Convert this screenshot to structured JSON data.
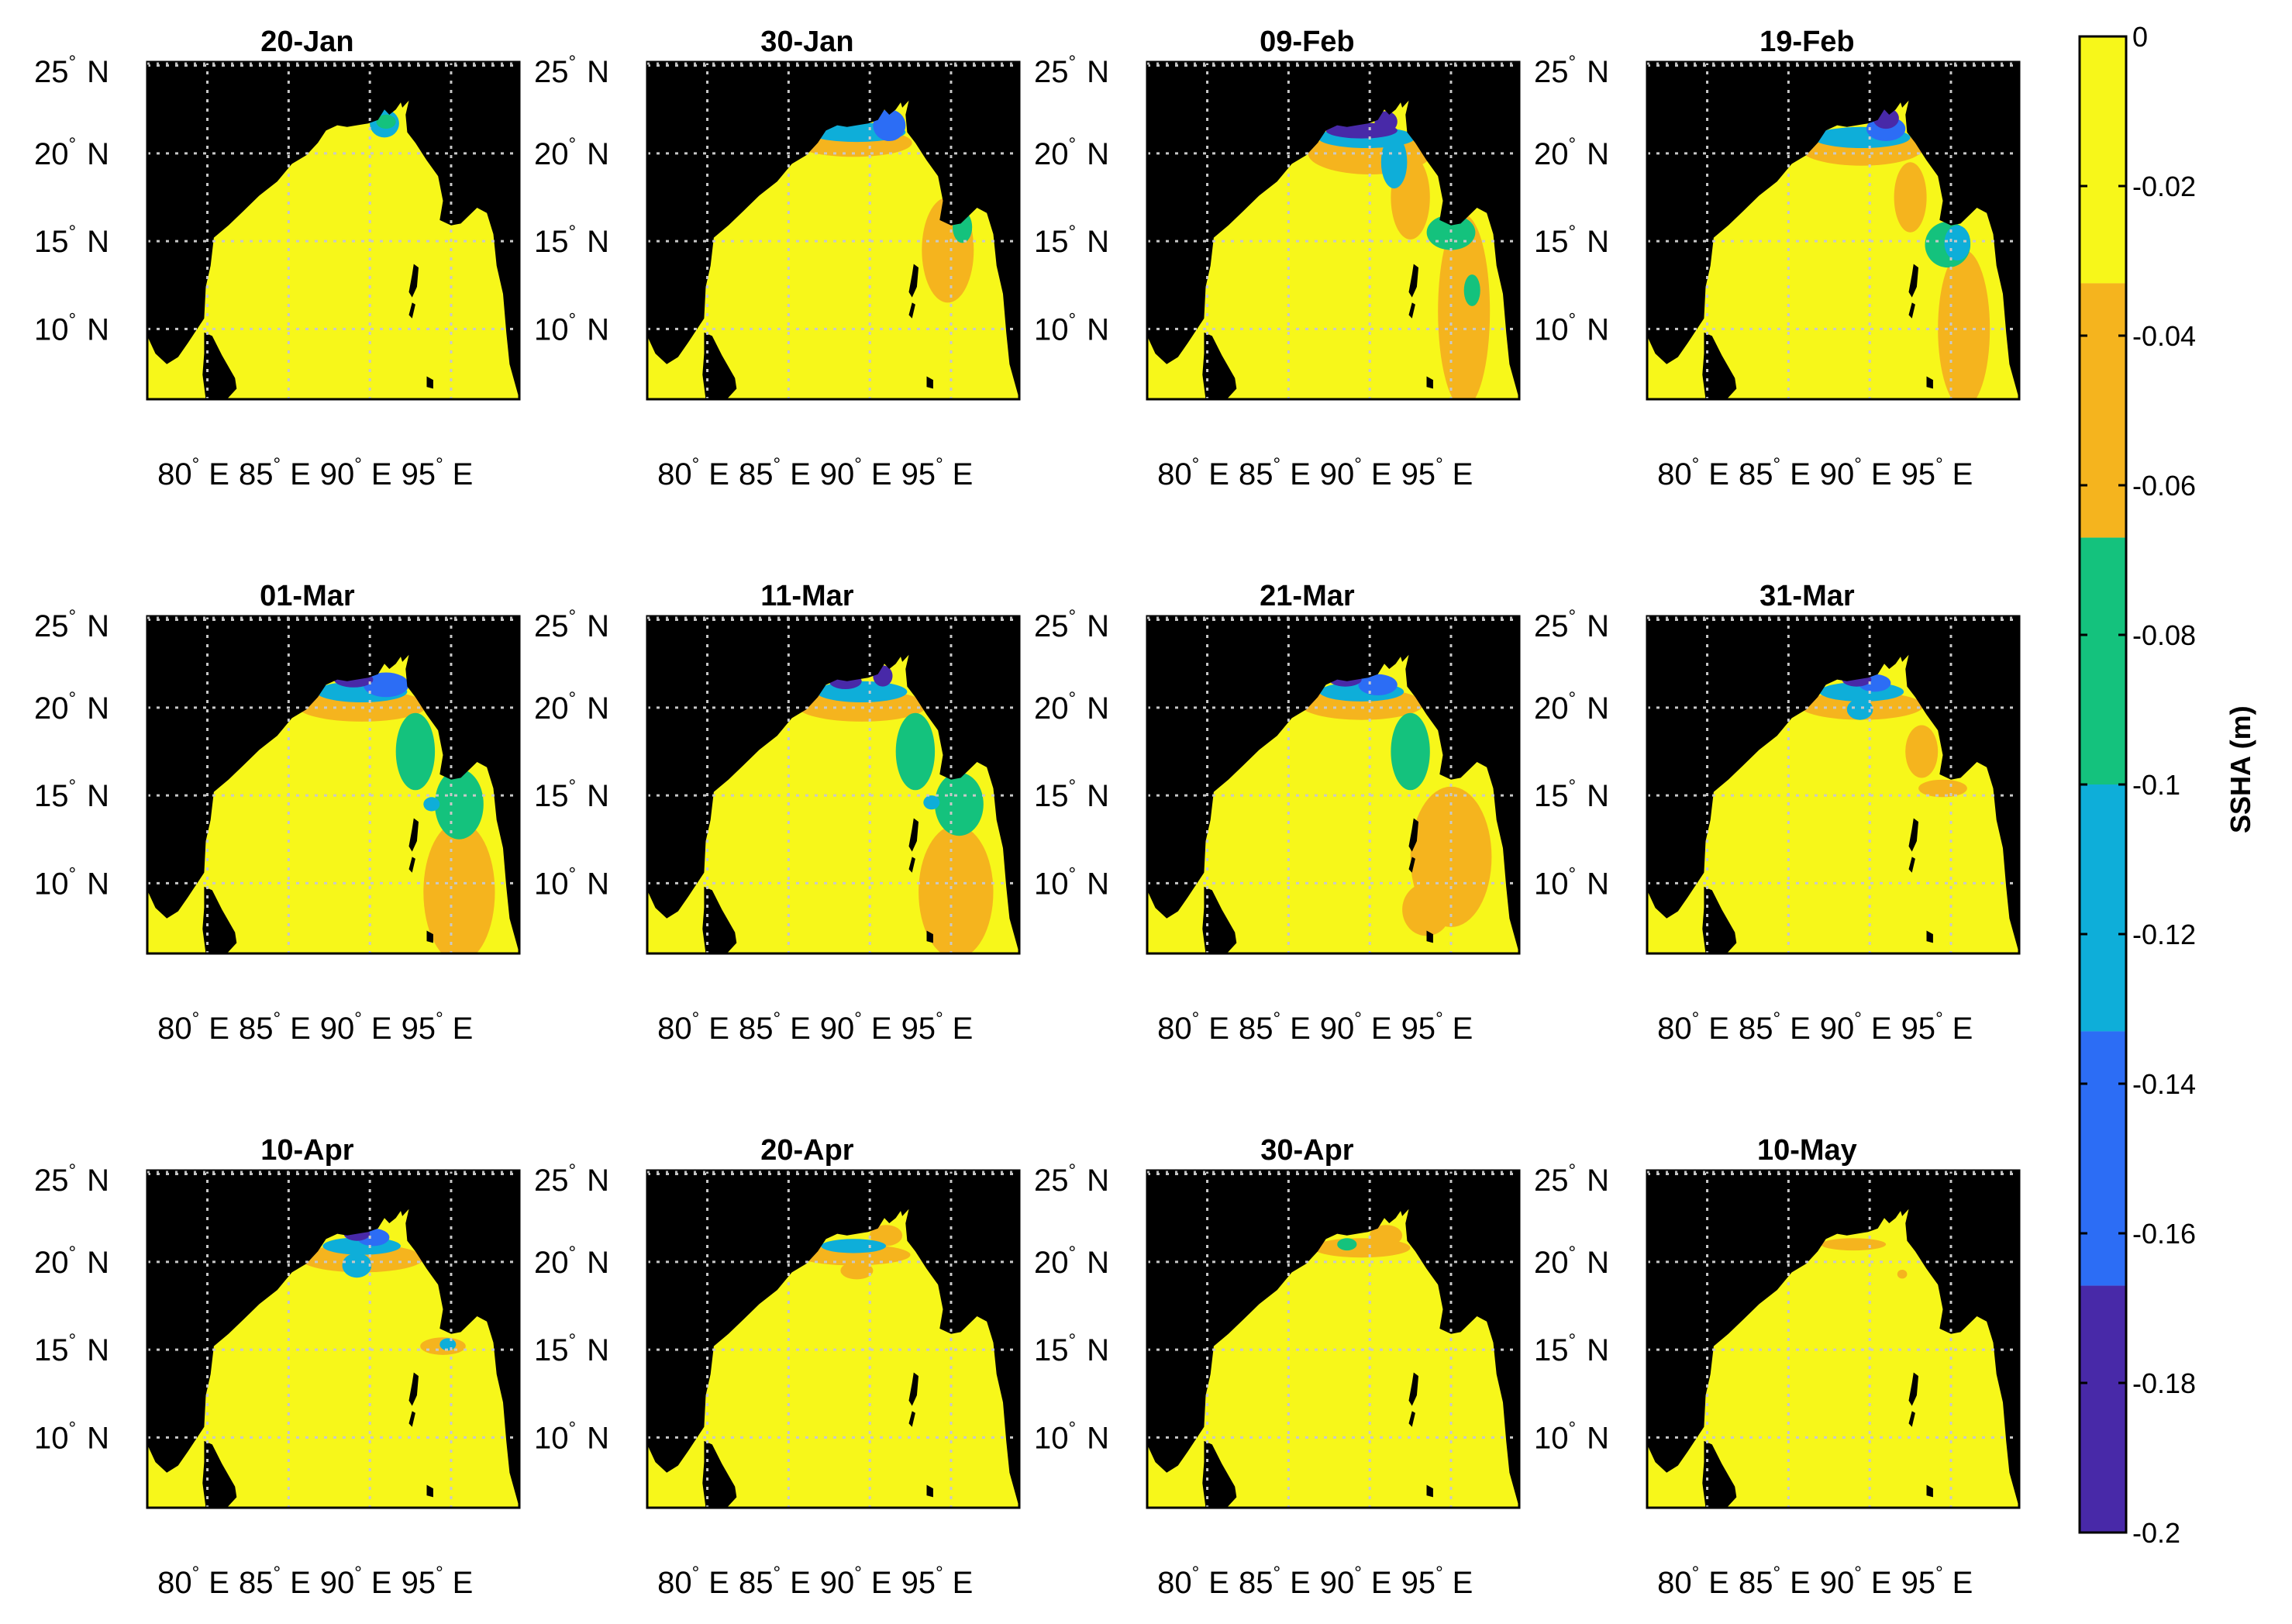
{
  "chart_data": {
    "type": "heatmap",
    "description_units": "SSHA (m)",
    "colorbar": {
      "label": "SSHA (m)",
      "range": [
        -0.2,
        0
      ],
      "ticks": [
        "0",
        "-0.02",
        "-0.04",
        "-0.06",
        "-0.08",
        "-0.1",
        "-0.12",
        "-0.14",
        "-0.16",
        "-0.18",
        "-0.2"
      ],
      "tick_values": [
        0,
        -0.02,
        -0.04,
        -0.06,
        -0.08,
        -0.1,
        -0.12,
        -0.14,
        -0.16,
        -0.18,
        -0.2
      ],
      "bands": [
        {
          "from": 0,
          "to": -0.033,
          "color": "#f7f71a"
        },
        {
          "from": -0.033,
          "to": -0.067,
          "color": "#f5b41e"
        },
        {
          "from": -0.067,
          "to": -0.1,
          "color": "#14c27d"
        },
        {
          "from": -0.1,
          "to": -0.133,
          "color": "#0eaed9"
        },
        {
          "from": -0.133,
          "to": -0.167,
          "color": "#2c6df5"
        },
        {
          "from": -0.167,
          "to": -0.2,
          "color": "#4829a8"
        }
      ]
    },
    "lat_ticks": [
      {
        "value": 25,
        "deg": "25",
        "hemi": "N"
      },
      {
        "value": 20,
        "deg": "20",
        "hemi": "N"
      },
      {
        "value": 15,
        "deg": "15",
        "hemi": "N"
      },
      {
        "value": 10,
        "deg": "10",
        "hemi": "N"
      }
    ],
    "lon_ticks": [
      {
        "value": 80,
        "deg": "80",
        "hemi": "E"
      },
      {
        "value": 85,
        "deg": "85",
        "hemi": "E"
      },
      {
        "value": 90,
        "deg": "90",
        "hemi": "E"
      },
      {
        "value": 95,
        "deg": "95",
        "hemi": "E"
      }
    ],
    "land_color": "#000000",
    "ocean_base_color": "#f7f71a",
    "grid": true,
    "panels": [
      {
        "date": "20-Jan",
        "min_ssha_m": -0.12,
        "anomalies": [
          {
            "lon": 90.9,
            "lat": 21.7,
            "rx": 0.9,
            "ry": 0.8,
            "band": 3
          },
          {
            "lon": 91.0,
            "lat": 21.8,
            "rx": 0.6,
            "ry": 0.4,
            "band": 2
          }
        ]
      },
      {
        "date": "30-Jan",
        "min_ssha_m": -0.14,
        "anomalies": [
          {
            "lon": 89.0,
            "lat": 20.6,
            "rx": 3.6,
            "ry": 0.8,
            "band": 1
          },
          {
            "lon": 89.2,
            "lat": 21.2,
            "rx": 3.0,
            "ry": 0.55,
            "band": 3
          },
          {
            "lon": 91.2,
            "lat": 21.6,
            "rx": 1.0,
            "ry": 0.9,
            "band": 4
          },
          {
            "lon": 94.8,
            "lat": 14.5,
            "rx": 1.6,
            "ry": 3.0,
            "band": 1
          },
          {
            "lon": 95.7,
            "lat": 15.8,
            "rx": 0.6,
            "ry": 0.9,
            "band": 2
          }
        ]
      },
      {
        "date": "09-Feb",
        "min_ssha_m": -0.2,
        "anomalies": [
          {
            "lon": 90.0,
            "lat": 20.0,
            "rx": 3.8,
            "ry": 1.2,
            "band": 1
          },
          {
            "lon": 92.5,
            "lat": 17.5,
            "rx": 1.2,
            "ry": 2.4,
            "band": 1
          },
          {
            "lon": 95.8,
            "lat": 11.0,
            "rx": 1.6,
            "ry": 5.5,
            "band": 1
          },
          {
            "lon": 95.0,
            "lat": 15.5,
            "rx": 1.5,
            "ry": 1.0,
            "band": 2
          },
          {
            "lon": 89.8,
            "lat": 20.9,
            "rx": 3.0,
            "ry": 0.6,
            "band": 3
          },
          {
            "lon": 91.5,
            "lat": 19.5,
            "rx": 0.8,
            "ry": 1.5,
            "band": 3
          },
          {
            "lon": 89.5,
            "lat": 21.3,
            "rx": 2.2,
            "ry": 0.45,
            "band": 5
          },
          {
            "lon": 91.0,
            "lat": 21.8,
            "rx": 0.7,
            "ry": 0.6,
            "band": 5
          },
          {
            "lon": 96.3,
            "lat": 12.2,
            "rx": 0.5,
            "ry": 0.9,
            "band": 2
          }
        ]
      },
      {
        "date": "19-Feb",
        "min_ssha_m": -0.2,
        "anomalies": [
          {
            "lon": 89.5,
            "lat": 20.3,
            "rx": 3.8,
            "ry": 1.0,
            "band": 1
          },
          {
            "lon": 92.5,
            "lat": 17.5,
            "rx": 1.0,
            "ry": 2.0,
            "band": 1
          },
          {
            "lon": 95.8,
            "lat": 10.0,
            "rx": 1.6,
            "ry": 4.5,
            "band": 1
          },
          {
            "lon": 94.8,
            "lat": 14.8,
            "rx": 1.4,
            "ry": 1.3,
            "band": 2
          },
          {
            "lon": 95.4,
            "lat": 14.9,
            "rx": 0.8,
            "ry": 1.0,
            "band": 3
          },
          {
            "lon": 89.5,
            "lat": 20.9,
            "rx": 3.0,
            "ry": 0.6,
            "band": 3
          },
          {
            "lon": 91.0,
            "lat": 21.4,
            "rx": 1.2,
            "ry": 0.7,
            "band": 4
          },
          {
            "lon": 91.0,
            "lat": 22.0,
            "rx": 0.8,
            "ry": 0.6,
            "band": 5
          }
        ]
      },
      {
        "date": "01-Mar",
        "min_ssha_m": -0.2,
        "anomalies": [
          {
            "lon": 89.5,
            "lat": 20.1,
            "rx": 4.0,
            "ry": 0.9,
            "band": 1
          },
          {
            "lon": 92.8,
            "lat": 17.5,
            "rx": 1.2,
            "ry": 2.2,
            "band": 2
          },
          {
            "lon": 95.5,
            "lat": 9.5,
            "rx": 2.2,
            "ry": 4.0,
            "band": 1
          },
          {
            "lon": 95.5,
            "lat": 14.5,
            "rx": 1.5,
            "ry": 2.0,
            "band": 2
          },
          {
            "lon": 93.8,
            "lat": 14.5,
            "rx": 0.5,
            "ry": 0.4,
            "band": 3
          },
          {
            "lon": 89.5,
            "lat": 20.9,
            "rx": 2.8,
            "ry": 0.6,
            "band": 3
          },
          {
            "lon": 91.0,
            "lat": 21.3,
            "rx": 1.4,
            "ry": 0.7,
            "band": 4
          },
          {
            "lon": 89.0,
            "lat": 21.6,
            "rx": 1.2,
            "ry": 0.45,
            "band": 5
          }
        ]
      },
      {
        "date": "11-Mar",
        "min_ssha_m": -0.2,
        "anomalies": [
          {
            "lon": 89.5,
            "lat": 20.1,
            "rx": 4.0,
            "ry": 0.9,
            "band": 1
          },
          {
            "lon": 92.8,
            "lat": 17.5,
            "rx": 1.2,
            "ry": 2.2,
            "band": 2
          },
          {
            "lon": 95.3,
            "lat": 9.5,
            "rx": 2.3,
            "ry": 3.8,
            "band": 1
          },
          {
            "lon": 95.5,
            "lat": 14.5,
            "rx": 1.5,
            "ry": 1.8,
            "band": 2
          },
          {
            "lon": 93.8,
            "lat": 14.6,
            "rx": 0.5,
            "ry": 0.4,
            "band": 3
          },
          {
            "lon": 89.5,
            "lat": 20.9,
            "rx": 2.8,
            "ry": 0.6,
            "band": 3
          },
          {
            "lon": 88.5,
            "lat": 21.5,
            "rx": 1.0,
            "ry": 0.45,
            "band": 5
          },
          {
            "lon": 90.8,
            "lat": 21.8,
            "rx": 0.6,
            "ry": 0.6,
            "band": 5
          }
        ]
      },
      {
        "date": "21-Mar",
        "min_ssha_m": -0.2,
        "anomalies": [
          {
            "lon": 89.5,
            "lat": 20.2,
            "rx": 3.8,
            "ry": 0.9,
            "band": 1
          },
          {
            "lon": 92.5,
            "lat": 17.5,
            "rx": 1.2,
            "ry": 2.2,
            "band": 2
          },
          {
            "lon": 95.0,
            "lat": 11.5,
            "rx": 2.5,
            "ry": 4.0,
            "band": 1
          },
          {
            "lon": 93.5,
            "lat": 8.5,
            "rx": 1.5,
            "ry": 1.5,
            "band": 1
          },
          {
            "lon": 89.5,
            "lat": 20.9,
            "rx": 2.6,
            "ry": 0.55,
            "band": 3
          },
          {
            "lon": 90.5,
            "lat": 21.3,
            "rx": 1.2,
            "ry": 0.6,
            "band": 4
          },
          {
            "lon": 88.5,
            "lat": 21.6,
            "rx": 1.0,
            "ry": 0.4,
            "band": 5
          }
        ]
      },
      {
        "date": "31-Mar",
        "min_ssha_m": -0.2,
        "anomalies": [
          {
            "lon": 89.5,
            "lat": 20.1,
            "rx": 3.8,
            "ry": 0.8,
            "band": 1
          },
          {
            "lon": 89.4,
            "lat": 19.9,
            "rx": 0.8,
            "ry": 0.6,
            "band": 3
          },
          {
            "lon": 93.2,
            "lat": 17.5,
            "rx": 1.0,
            "ry": 1.5,
            "band": 1
          },
          {
            "lon": 94.5,
            "lat": 15.4,
            "rx": 1.5,
            "ry": 0.5,
            "band": 1
          },
          {
            "lon": 89.5,
            "lat": 20.9,
            "rx": 2.6,
            "ry": 0.55,
            "band": 3
          },
          {
            "lon": 90.3,
            "lat": 21.4,
            "rx": 1.0,
            "ry": 0.5,
            "band": 4
          },
          {
            "lon": 89.2,
            "lat": 21.6,
            "rx": 0.9,
            "ry": 0.4,
            "band": 5
          }
        ]
      },
      {
        "date": "10-Apr",
        "min_ssha_m": -0.2,
        "anomalies": [
          {
            "lon": 89.5,
            "lat": 20.2,
            "rx": 3.8,
            "ry": 0.8,
            "band": 1
          },
          {
            "lon": 89.2,
            "lat": 19.8,
            "rx": 0.9,
            "ry": 0.7,
            "band": 3
          },
          {
            "lon": 94.5,
            "lat": 15.2,
            "rx": 1.4,
            "ry": 0.5,
            "band": 1
          },
          {
            "lon": 94.8,
            "lat": 15.3,
            "rx": 0.5,
            "ry": 0.35,
            "band": 3
          },
          {
            "lon": 89.5,
            "lat": 20.9,
            "rx": 2.4,
            "ry": 0.5,
            "band": 3
          },
          {
            "lon": 90.2,
            "lat": 21.4,
            "rx": 1.0,
            "ry": 0.5,
            "band": 4
          },
          {
            "lon": 89.2,
            "lat": 21.6,
            "rx": 0.8,
            "ry": 0.4,
            "band": 5
          }
        ]
      },
      {
        "date": "20-Apr",
        "min_ssha_m": -0.12,
        "anomalies": [
          {
            "lon": 89.0,
            "lat": 20.4,
            "rx": 3.5,
            "ry": 0.6,
            "band": 1
          },
          {
            "lon": 89.2,
            "lat": 19.5,
            "rx": 1.0,
            "ry": 0.5,
            "band": 1
          },
          {
            "lon": 91.0,
            "lat": 21.5,
            "rx": 1.0,
            "ry": 0.6,
            "band": 1
          },
          {
            "lon": 89.0,
            "lat": 20.9,
            "rx": 2.0,
            "ry": 0.4,
            "band": 3
          }
        ]
      },
      {
        "date": "30-Apr",
        "min_ssha_m": -0.1,
        "anomalies": [
          {
            "lon": 89.5,
            "lat": 20.8,
            "rx": 3.0,
            "ry": 0.55,
            "band": 1
          },
          {
            "lon": 91.0,
            "lat": 21.5,
            "rx": 1.0,
            "ry": 0.6,
            "band": 1
          },
          {
            "lon": 88.6,
            "lat": 21.0,
            "rx": 0.6,
            "ry": 0.35,
            "band": 2
          }
        ]
      },
      {
        "date": "10-May",
        "min_ssha_m": -0.06,
        "anomalies": [
          {
            "lon": 89.0,
            "lat": 21.0,
            "rx": 2.0,
            "ry": 0.35,
            "band": 1
          },
          {
            "lon": 92.0,
            "lat": 19.3,
            "rx": 0.3,
            "ry": 0.25,
            "band": 1
          }
        ]
      }
    ]
  }
}
